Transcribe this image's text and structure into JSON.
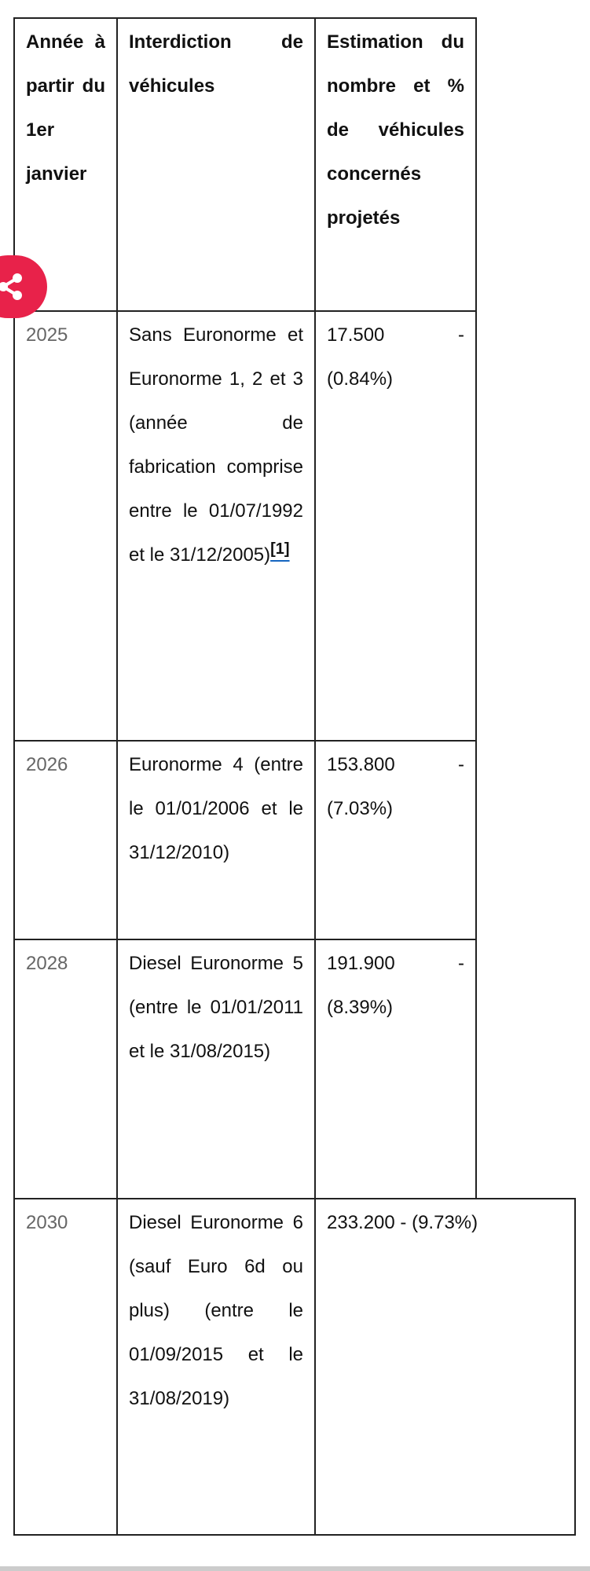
{
  "table": {
    "headers": [
      "Année à partir du 1er janvier",
      "Interdiction de véhicules",
      "Estimation du nombre et % de véhicules concernés projetés"
    ],
    "rows": [
      {
        "year": "2025",
        "ban": "Sans Euronorme et Euronorme 1, 2 et 3 (année de fabrication comprise entre le 01/07/1992 et le 31/12/2005)",
        "footnote": "[1]",
        "estimate": "17.500 - (0.84%)"
      },
      {
        "year": "2026",
        "ban": "Euronorme 4 (entre le 01/01/2006 et le 31/12/2010)",
        "estimate": "153.800 - (7.03%)"
      },
      {
        "year": "2028",
        "ban": "Diesel Euronorme 5 (entre le 01/01/2011 et le 31/08/2015)",
        "estimate": "191.900 - (8.39%)"
      },
      {
        "year": "2030",
        "ban": "Diesel Euronorme 6 (sauf Euro 6d ou plus) (entre le 01/09/2015 et le 31/08/2019)",
        "estimate": "233.200 - (9.73%)"
      }
    ]
  },
  "share_button": {
    "icon": "share-icon",
    "color": "#e8224a"
  },
  "link_color": "#1565c0"
}
